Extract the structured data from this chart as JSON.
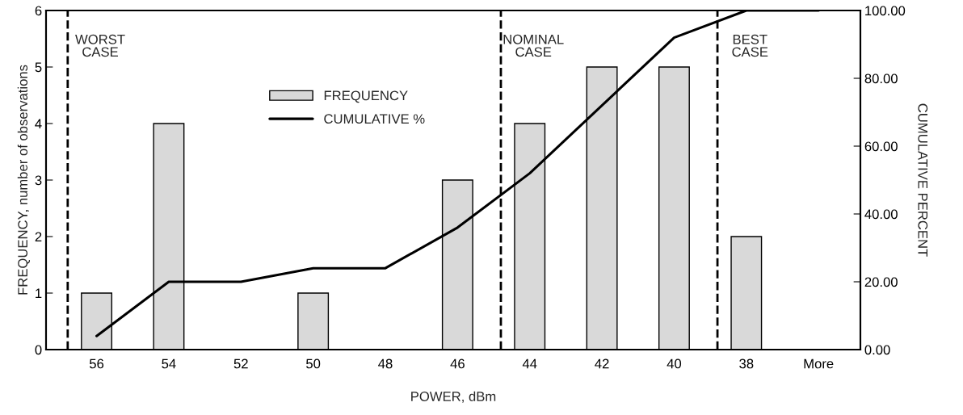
{
  "chart_data": {
    "type": "bar",
    "xlabel": "POWER, dBm",
    "ylabel": "FREQUENCY, number of observations",
    "y2label": "CUMULATIVE PERCENT",
    "categories": [
      "56",
      "54",
      "52",
      "50",
      "48",
      "46",
      "44",
      "42",
      "40",
      "38",
      "More"
    ],
    "series": [
      {
        "name": "FREQUENCY",
        "color": "#d9d9d9",
        "values": [
          1,
          4,
          0,
          1,
          0,
          3,
          4,
          5,
          5,
          2,
          0
        ]
      },
      {
        "name": "CUMULATIVE %",
        "type": "line",
        "axis": "y2",
        "color": "#000000",
        "values": [
          4,
          20,
          20,
          24,
          24,
          36,
          52,
          72,
          92,
          100,
          100
        ]
      }
    ],
    "ylim": [
      0,
      6
    ],
    "yticks": [
      0,
      1,
      2,
      3,
      4,
      5,
      6
    ],
    "y2lim": [
      0,
      100
    ],
    "y2ticks": [
      {
        "value": 0,
        "label": "0.00"
      },
      {
        "value": 20,
        "label": "20.00"
      },
      {
        "value": 40,
        "label": "40.00"
      },
      {
        "value": 60,
        "label": "60.00"
      },
      {
        "value": 80,
        "label": "80.00"
      },
      {
        "value": 100,
        "label": "100.00"
      }
    ],
    "annotations": [
      "WORST\nCASE",
      "NOMINAL\nCASE",
      "BEST\nCASE"
    ],
    "grid": false,
    "legend": "top",
    "line_style": "solid",
    "marker": "none"
  }
}
